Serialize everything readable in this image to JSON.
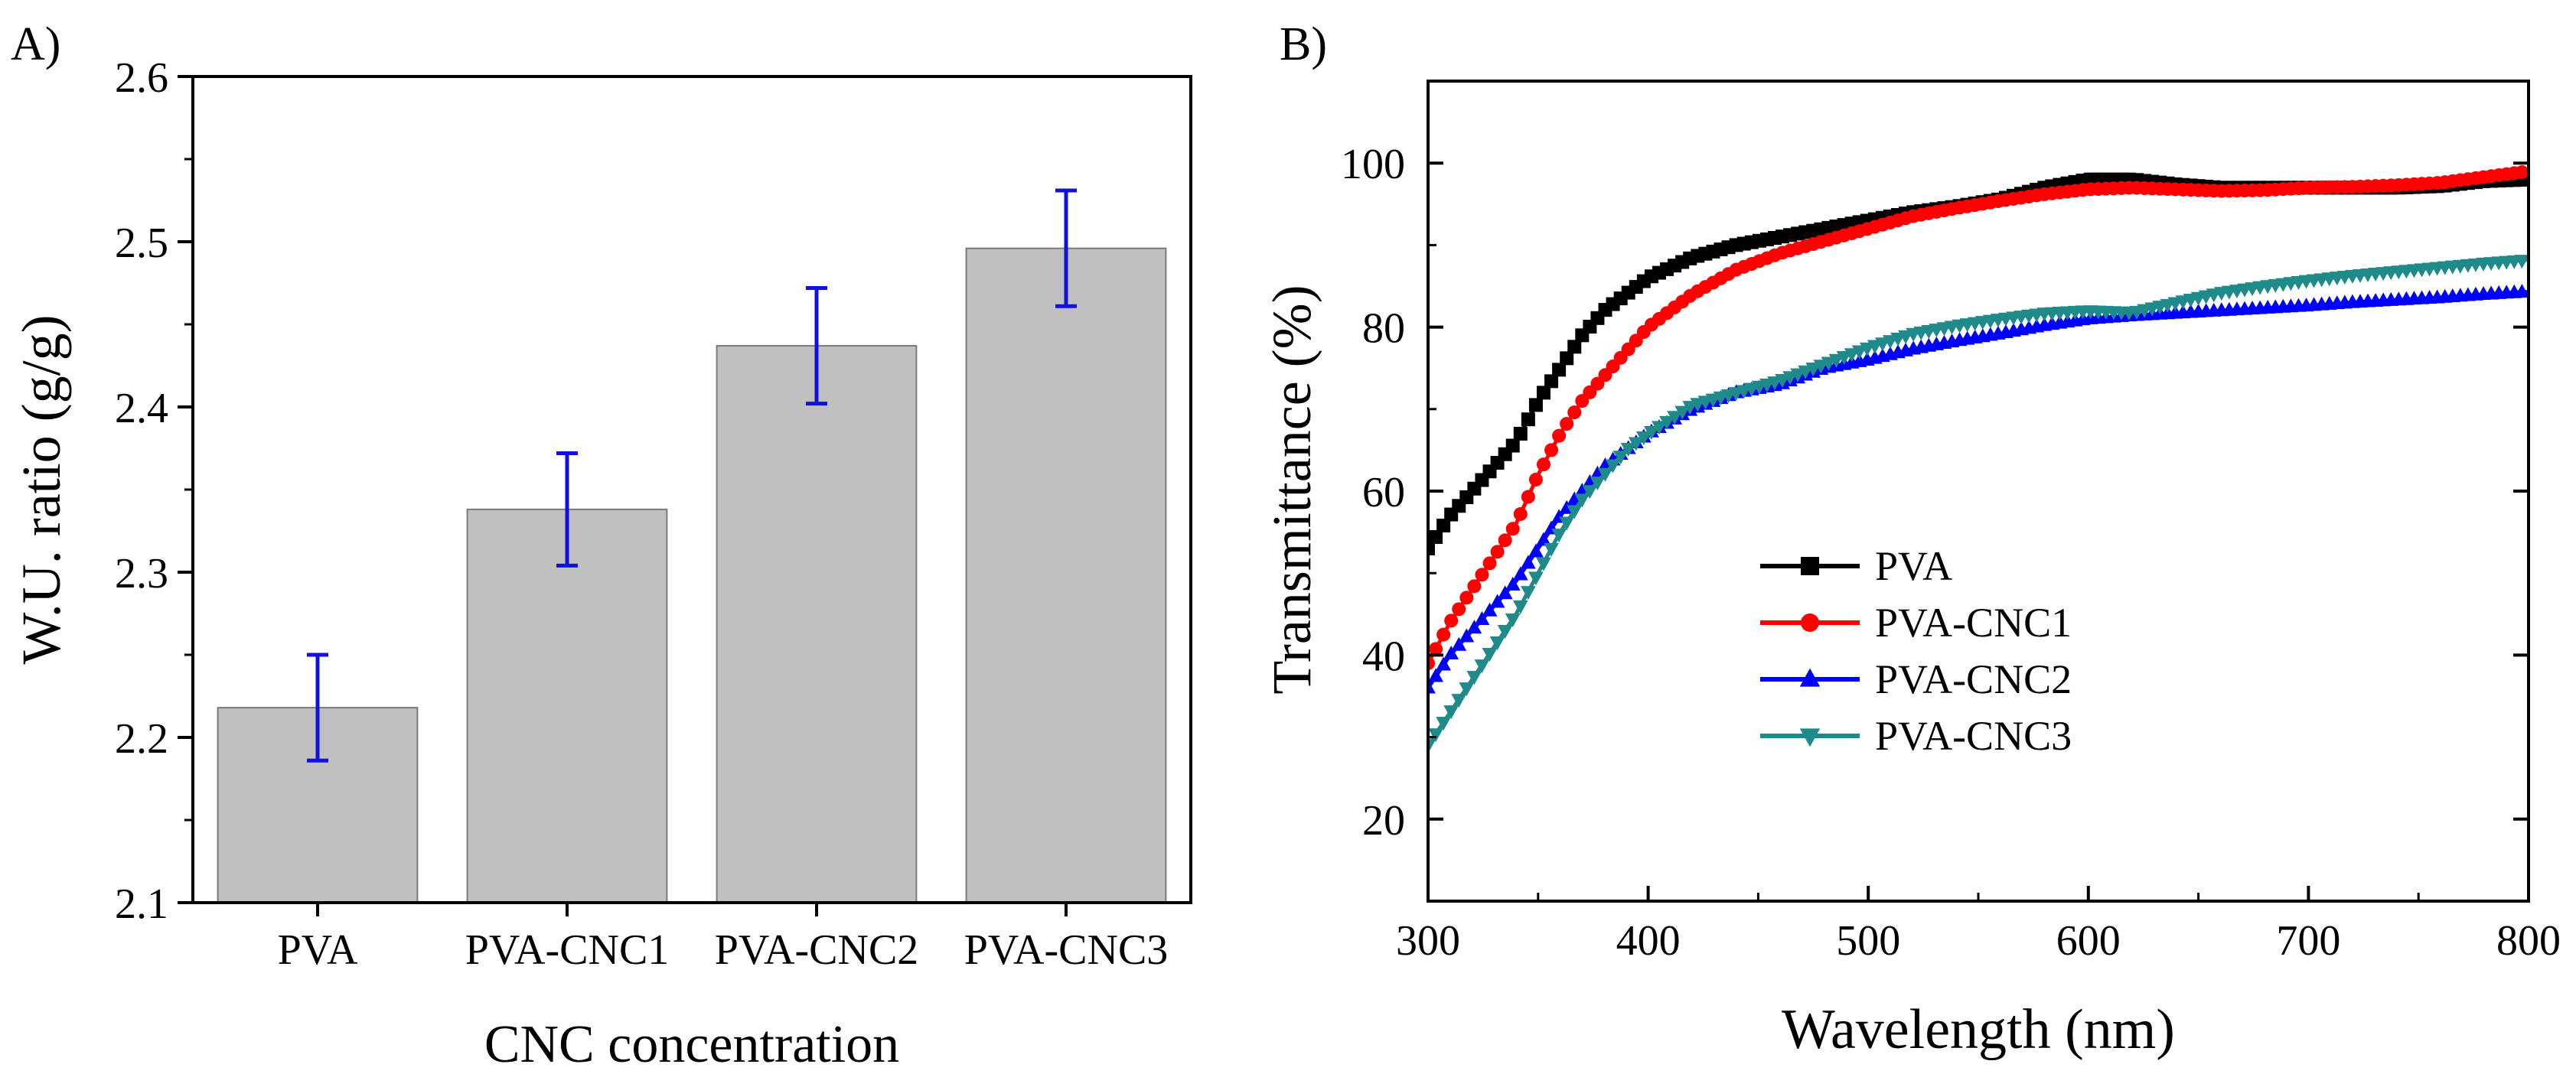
{
  "chart_data": [
    {
      "panel_label": "A)",
      "type": "bar",
      "title": "",
      "xlabel": "CNC concentration",
      "ylabel": "W.U. ratio (g/g)",
      "categories": [
        "PVA",
        "PVA-CNC1",
        "PVA-CNC2",
        "PVA-CNC3"
      ],
      "values": [
        2.218,
        2.338,
        2.437,
        2.496
      ],
      "errors": [
        0.032,
        0.034,
        0.035,
        0.035
      ],
      "ylim": [
        2.1,
        2.6
      ],
      "yticks": [
        "2.1",
        "2.2",
        "2.3",
        "2.4",
        "2.5",
        "2.6"
      ],
      "colors": {
        "bar": "#c0c0c0",
        "bar_edge": "#7a7a7a",
        "error": "#1111dd"
      }
    },
    {
      "panel_label": "B)",
      "type": "line",
      "title": "",
      "xlabel": "Wavelength (nm)",
      "ylabel": "Transmittance (%)",
      "xlim": [
        300,
        800
      ],
      "ylim": [
        10,
        110
      ],
      "xticks": [
        "300",
        "400",
        "500",
        "600",
        "700",
        "800"
      ],
      "yticks": [
        "20",
        "40",
        "60",
        "80",
        "100"
      ],
      "legend_position": "center-left",
      "series": [
        {
          "name": "PVA",
          "color": "#000000",
          "marker": "square",
          "x": [
            300,
            310,
            320,
            330,
            340,
            350,
            360,
            370,
            380,
            390,
            400,
            420,
            440,
            460,
            480,
            500,
            520,
            540,
            560,
            580,
            600,
            620,
            640,
            660,
            680,
            700,
            720,
            740,
            760,
            780,
            800
          ],
          "y": [
            53,
            57,
            60,
            63,
            66,
            71,
            75,
            79,
            82,
            84,
            86,
            88.5,
            90,
            91,
            92,
            93,
            94,
            94.7,
            95.6,
            97,
            98,
            98,
            97.4,
            97,
            97,
            97,
            97,
            97,
            97.2,
            97.8,
            98
          ]
        },
        {
          "name": "PVA-CNC1",
          "color": "#ff0000",
          "marker": "circle",
          "x": [
            300,
            310,
            320,
            330,
            340,
            350,
            360,
            370,
            380,
            390,
            400,
            420,
            440,
            460,
            480,
            500,
            520,
            540,
            560,
            580,
            600,
            620,
            640,
            660,
            680,
            700,
            720,
            740,
            760,
            780,
            800
          ],
          "y": [
            39,
            44,
            48,
            52,
            56,
            62,
            67,
            71,
            74,
            77,
            80,
            84,
            87,
            89,
            90.5,
            92,
            93.5,
            94.5,
            95.4,
            96.2,
            96.8,
            97,
            96.8,
            96.6,
            96.7,
            97,
            97.1,
            97.3,
            97.6,
            98.3,
            99
          ]
        },
        {
          "name": "PVA-CNC2",
          "color": "#0000ff",
          "marker": "triangle-up",
          "x": [
            300,
            310,
            320,
            330,
            340,
            350,
            360,
            370,
            380,
            390,
            400,
            420,
            440,
            460,
            480,
            500,
            520,
            540,
            560,
            580,
            600,
            620,
            640,
            660,
            680,
            700,
            720,
            740,
            760,
            780,
            800
          ],
          "y": [
            36,
            40,
            43,
            46,
            49,
            53,
            57,
            60,
            63,
            65,
            67,
            70,
            72,
            73,
            75,
            76,
            77.3,
            78.3,
            79.2,
            80.2,
            81,
            81.4,
            81.7,
            82,
            82.3,
            82.6,
            83,
            83.3,
            83.6,
            84,
            84.3
          ]
        },
        {
          "name": "PVA-CNC3",
          "color": "#1f8a8a",
          "marker": "triangle-down",
          "x": [
            300,
            310,
            320,
            330,
            340,
            350,
            360,
            370,
            380,
            390,
            400,
            420,
            440,
            460,
            480,
            500,
            520,
            540,
            560,
            580,
            600,
            620,
            640,
            660,
            680,
            700,
            720,
            740,
            760,
            780,
            800
          ],
          "y": [
            29,
            33,
            37,
            41,
            45,
            50,
            55,
            59,
            62,
            65,
            67,
            70.5,
            72,
            73.5,
            75.5,
            77.5,
            79.2,
            80.2,
            81,
            81.7,
            82,
            81.8,
            83,
            84.2,
            85,
            85.7,
            86.3,
            86.8,
            87.3,
            87.8,
            88.2
          ]
        }
      ]
    }
  ]
}
